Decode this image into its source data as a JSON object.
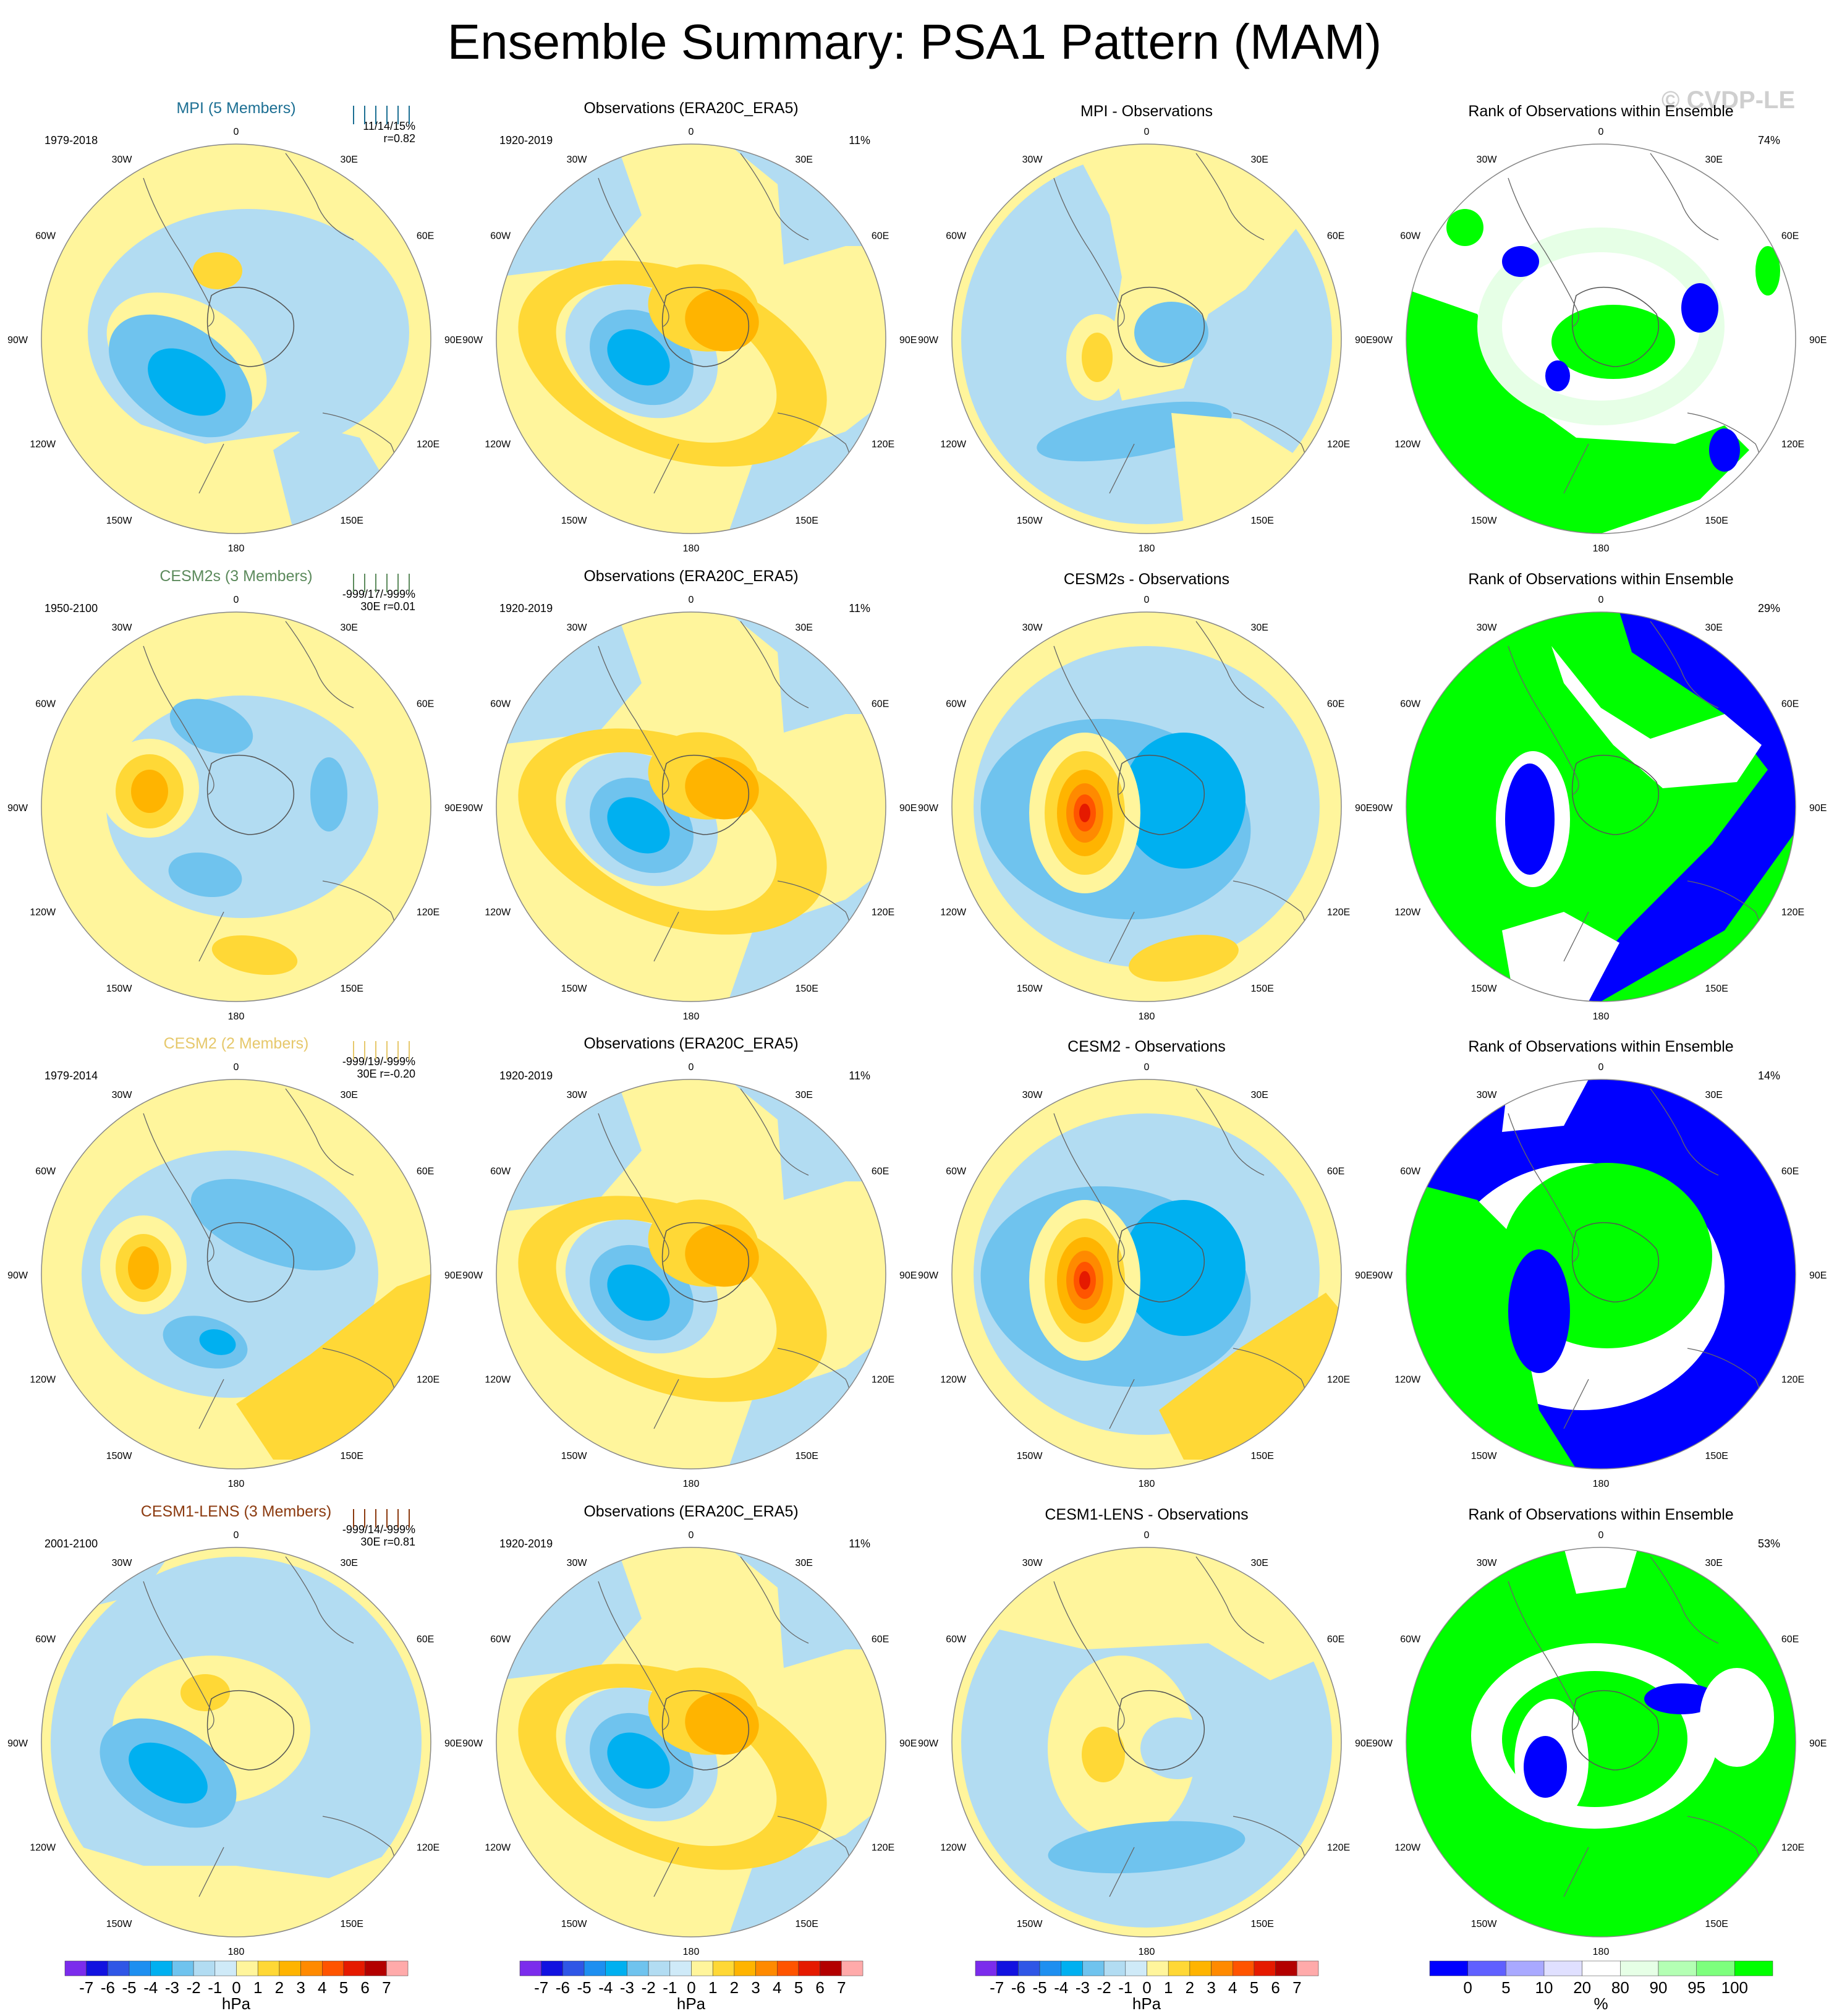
{
  "title": "Ensemble Summary: PSA1 Pattern (MAM)",
  "watermark": "© CVDP-LE",
  "longitude_labels": [
    "0",
    "30E",
    "60E",
    "90E",
    "120E",
    "150E",
    "180",
    "150W",
    "120W",
    "90W",
    "60W",
    "30W"
  ],
  "colors": {
    "neg1": "#b2dcf2",
    "neg2": "#6fc3ee",
    "neg3": "#00b0f0",
    "neg4": "#1e8ff0",
    "neg5": "#2f56e6",
    "neg6": "#1212e0",
    "neg7": "#7b2cec",
    "pos1": "#fff59c",
    "pos2": "#ffd836",
    "pos3": "#ffb400",
    "pos4": "#ff8a00",
    "pos5": "#ff5400",
    "pos6": "#e51a00",
    "pos7": "#c80000",
    "rank_low": "#0000ff",
    "rank_high": "#00ff00",
    "rank_mid_high": "#e6ffe6",
    "title_mpi": "#1c6f93",
    "title_cesm2s": "#5c8a5c",
    "title_cesm2": "#e6c86b",
    "title_cesm1": "#8b3a0f"
  },
  "rows": [
    {
      "model_title": "MPI (5 Members)",
      "model_period": "1979-2018",
      "model_stats": "11/14/15%",
      "model_stats2": "r=0.82",
      "obs_title": "Observations (ERA20C_ERA5)",
      "obs_period": "1920-2019",
      "obs_pct": "11%",
      "diff_title": "MPI - Observations",
      "rank_title": "Rank of Observations within Ensemble",
      "rank_pct": "74%"
    },
    {
      "model_title": "CESM2s (3 Members)",
      "model_period": "1950-2100",
      "model_stats": "-999/17/-999%",
      "model_stats2": "30E r=0.01",
      "obs_title": "Observations (ERA20C_ERA5)",
      "obs_period": "1920-2019",
      "obs_pct": "11%",
      "diff_title": "CESM2s - Observations",
      "rank_title": "Rank of Observations within Ensemble",
      "rank_pct": "29%"
    },
    {
      "model_title": "CESM2 (2 Members)",
      "model_period": "1979-2014",
      "model_stats": "-999/19/-999%",
      "model_stats2": "30E r=-0.20",
      "obs_title": "Observations (ERA20C_ERA5)",
      "obs_period": "1920-2019",
      "obs_pct": "11%",
      "diff_title": "CESM2 - Observations",
      "rank_title": "Rank of Observations within Ensemble",
      "rank_pct": "14%"
    },
    {
      "model_title": "CESM1-LENS (3 Members)",
      "model_period": "2001-2100",
      "model_stats": "-999/14/-999%",
      "model_stats2": "30E r=0.81",
      "obs_title": "Observations (ERA20C_ERA5)",
      "obs_period": "1920-2019",
      "obs_pct": "11%",
      "diff_title": "CESM1-LENS - Observations",
      "rank_title": "Rank of Observations within Ensemble",
      "rank_pct": "53%"
    }
  ],
  "colorbar_hpa": {
    "ticks": [
      "-7",
      "-6",
      "-5",
      "-4",
      "-3",
      "-2",
      "-1",
      "0",
      "1",
      "2",
      "3",
      "4",
      "5",
      "6",
      "7"
    ],
    "unit": "hPa"
  },
  "colorbar_rank": {
    "ticks": [
      "0",
      "5",
      "10",
      "20",
      "80",
      "90",
      "95",
      "100"
    ],
    "unit": "%"
  },
  "chart_data": {
    "type": "heatmap",
    "title": "Ensemble Summary: PSA1 Pattern (MAM)",
    "projection": "south polar stereographic",
    "levels_hPa": [
      -7,
      -6,
      -5,
      -4,
      -3,
      -2,
      -1,
      0,
      1,
      2,
      3,
      4,
      5,
      6,
      7
    ],
    "levels_rank_pct": [
      0,
      5,
      10,
      20,
      80,
      90,
      95,
      100
    ],
    "panels": [
      {
        "row": 1,
        "col": 1,
        "title": "MPI (5 Members)",
        "period": "1979-2018",
        "stats": "11/14/15%",
        "r": 0.82
      },
      {
        "row": 1,
        "col": 2,
        "title": "Observations (ERA20C_ERA5)",
        "period": "1920-2019",
        "pct": 11
      },
      {
        "row": 1,
        "col": 3,
        "title": "MPI - Observations"
      },
      {
        "row": 1,
        "col": 4,
        "title": "Rank of Observations within Ensemble",
        "pct": 74
      },
      {
        "row": 2,
        "col": 1,
        "title": "CESM2s (3 Members)",
        "period": "1950-2100",
        "stats": "-999/17/-999%",
        "r": 0.01
      },
      {
        "row": 2,
        "col": 2,
        "title": "Observations (ERA20C_ERA5)",
        "period": "1920-2019",
        "pct": 11
      },
      {
        "row": 2,
        "col": 3,
        "title": "CESM2s - Observations"
      },
      {
        "row": 2,
        "col": 4,
        "title": "Rank of Observations within Ensemble",
        "pct": 29
      },
      {
        "row": 3,
        "col": 1,
        "title": "CESM2 (2 Members)",
        "period": "1979-2014",
        "stats": "-999/19/-999%",
        "r": -0.2
      },
      {
        "row": 3,
        "col": 2,
        "title": "Observations (ERA20C_ERA5)",
        "period": "1920-2019",
        "pct": 11
      },
      {
        "row": 3,
        "col": 3,
        "title": "CESM2 - Observations"
      },
      {
        "row": 3,
        "col": 4,
        "title": "Rank of Observations within Ensemble",
        "pct": 14
      },
      {
        "row": 4,
        "col": 1,
        "title": "CESM1-LENS (3 Members)",
        "period": "2001-2100",
        "stats": "-999/14/-999%",
        "r": 0.81
      },
      {
        "row": 4,
        "col": 2,
        "title": "Observations (ERA20C_ERA5)",
        "period": "1920-2019",
        "pct": 11
      },
      {
        "row": 4,
        "col": 3,
        "title": "CESM1-LENS - Observations"
      },
      {
        "row": 4,
        "col": 4,
        "title": "Rank of Observations within Ensemble",
        "pct": 53
      }
    ]
  }
}
